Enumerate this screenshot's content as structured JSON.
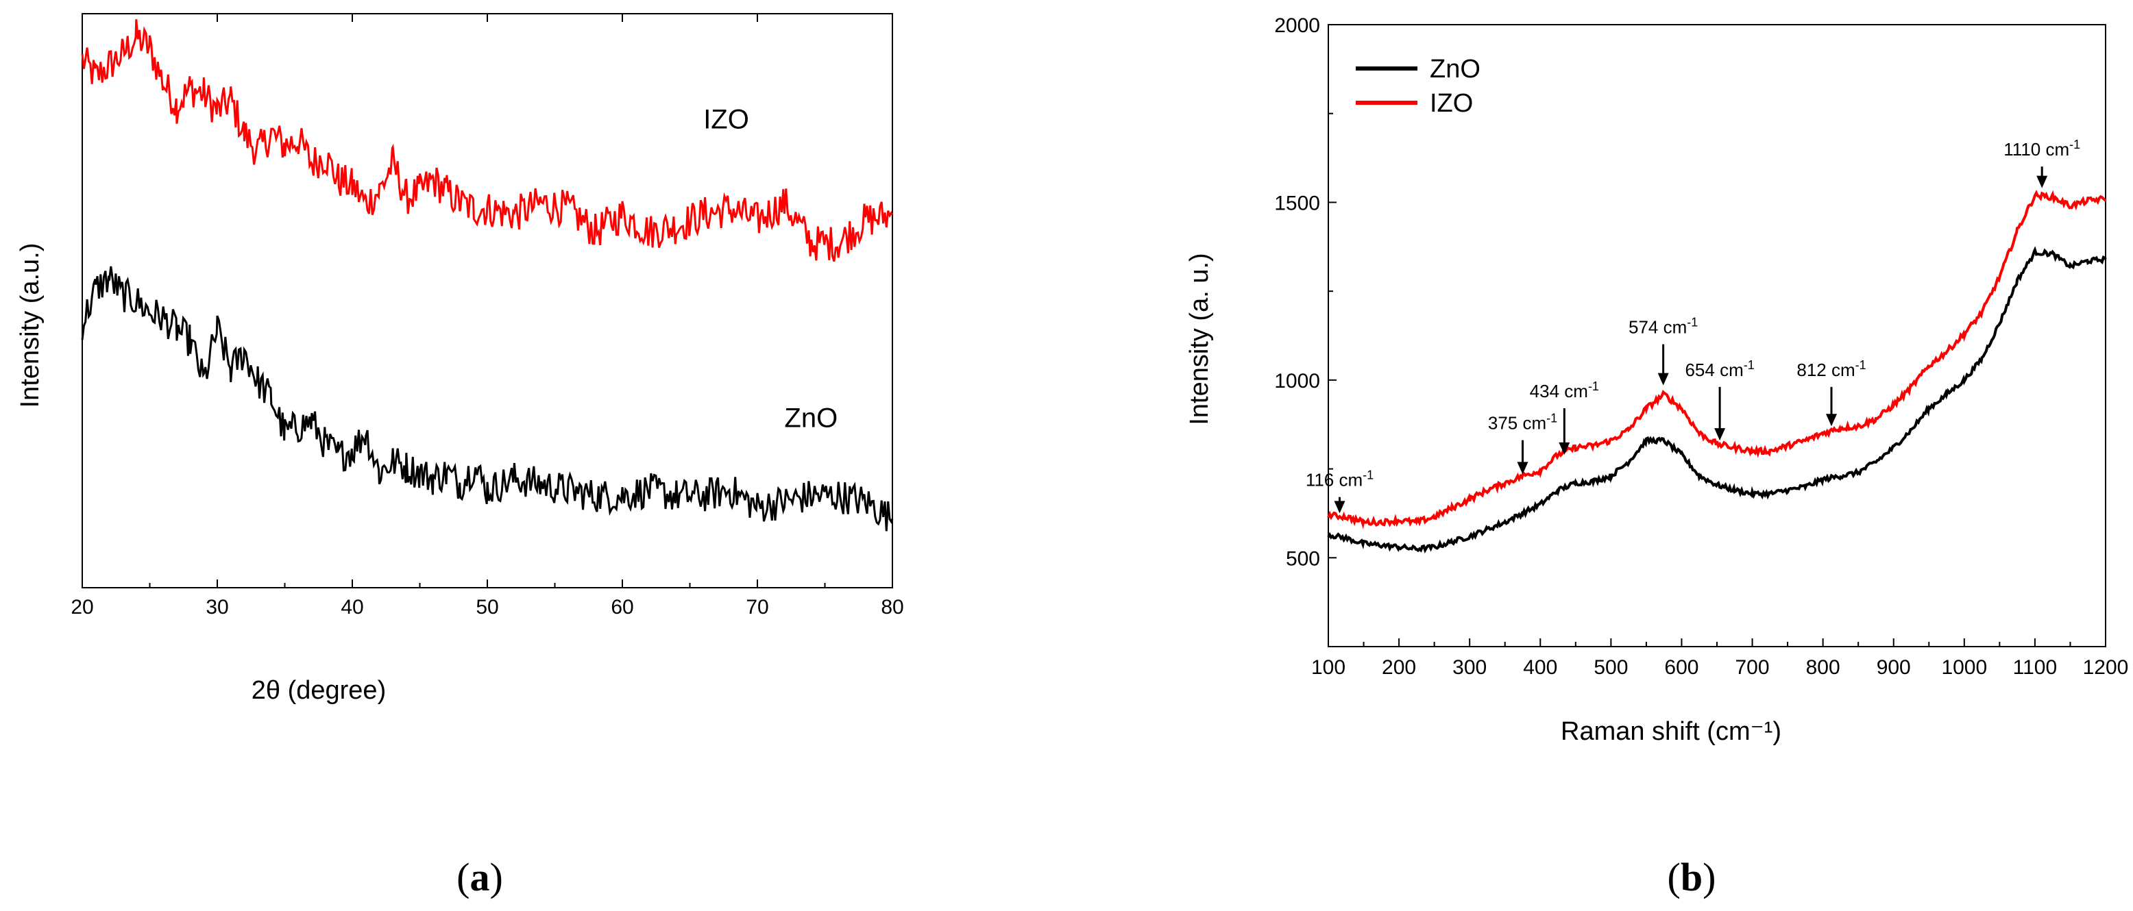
{
  "chart_data": [
    {
      "id": "a",
      "type": "line",
      "panel_label": {
        "open": "(",
        "letter": "a",
        "close": ")"
      },
      "title": "",
      "xlabel": "2θ (degree)",
      "ylabel": "Intensity (a.u.)",
      "xlim": [
        20,
        80
      ],
      "xticks": [
        20,
        30,
        40,
        50,
        60,
        70,
        80
      ],
      "yticks_shown": false,
      "ylim": [
        0,
        100
      ],
      "series": [
        {
          "name": "IZO",
          "color": "#ff0000",
          "label": "IZO",
          "label_at": [
            66,
            80
          ],
          "x": [
            20,
            21,
            22,
            23,
            24,
            25,
            26,
            27,
            28,
            29,
            30,
            31,
            32,
            33,
            34,
            35,
            36,
            37,
            38,
            39,
            40,
            41,
            42,
            43,
            44,
            45,
            46,
            47,
            48,
            49,
            50,
            52,
            54,
            56,
            58,
            60,
            62,
            64,
            66,
            68,
            70,
            72,
            74,
            76,
            78,
            80
          ],
          "y": [
            92,
            89,
            91,
            93,
            96,
            94,
            88,
            84,
            87,
            86,
            83,
            85,
            79,
            76,
            79,
            77,
            78,
            74,
            75,
            71,
            70,
            67,
            69,
            74,
            68,
            69,
            71,
            69,
            67,
            66,
            66,
            65,
            67,
            66,
            62,
            65,
            62,
            63,
            65,
            66,
            64,
            67,
            60,
            60,
            64,
            65
          ],
          "noise": 3.2
        },
        {
          "name": "ZnO",
          "color": "#000000",
          "label": "ZnO",
          "label_at": [
            72,
            28
          ],
          "x": [
            20,
            21,
            22,
            23,
            24,
            25,
            26,
            27,
            28,
            29,
            30,
            31,
            32,
            33,
            34,
            35,
            36,
            37,
            38,
            39,
            40,
            41,
            42,
            43,
            44,
            45,
            46,
            47,
            48,
            49,
            50,
            52,
            54,
            56,
            58,
            60,
            62,
            64,
            66,
            68,
            70,
            72,
            74,
            76,
            78,
            80
          ],
          "y": [
            46,
            52,
            54,
            51,
            50,
            48,
            47,
            45,
            43,
            36,
            45,
            38,
            41,
            36,
            33,
            27,
            28,
            29,
            25,
            23,
            24,
            27,
            20,
            22,
            21,
            20,
            19,
            20,
            18,
            21,
            17,
            19,
            18,
            17,
            16,
            16,
            17,
            16,
            16,
            17,
            14,
            15,
            16,
            16,
            15,
            12
          ],
          "noise": 3.0
        }
      ]
    },
    {
      "id": "b",
      "type": "line",
      "panel_label": {
        "open": "(",
        "letter": "b",
        "close": ")"
      },
      "title": "",
      "xlabel": "Raman shift (cm⁻¹)",
      "ylabel": "Intensity (a. u.)",
      "xlim": [
        100,
        1200
      ],
      "ylim": [
        250,
        2000
      ],
      "xticks": [
        100,
        200,
        300,
        400,
        500,
        600,
        700,
        800,
        900,
        1000,
        1100,
        1200
      ],
      "yticks": [
        500,
        1000,
        1500,
        2000
      ],
      "legend": {
        "position": "top-left",
        "entries": [
          "ZnO",
          "IZO"
        ]
      },
      "series": [
        {
          "name": "ZnO",
          "color": "#000000",
          "x": [
            100,
            125,
            150,
            175,
            200,
            225,
            250,
            275,
            300,
            325,
            350,
            375,
            400,
            425,
            450,
            475,
            500,
            525,
            550,
            575,
            600,
            625,
            650,
            675,
            700,
            725,
            750,
            775,
            800,
            825,
            850,
            875,
            900,
            925,
            950,
            975,
            1000,
            1025,
            1050,
            1075,
            1100,
            1125,
            1150,
            1175,
            1200
          ],
          "y": [
            565,
            555,
            540,
            535,
            530,
            525,
            530,
            545,
            560,
            580,
            600,
            625,
            650,
            690,
            710,
            715,
            730,
            770,
            830,
            830,
            790,
            730,
            705,
            690,
            680,
            680,
            690,
            700,
            720,
            730,
            740,
            770,
            810,
            860,
            920,
            960,
            1000,
            1060,
            1160,
            1280,
            1360,
            1355,
            1320,
            1335,
            1340
          ],
          "noise": 7
        },
        {
          "name": "IZO",
          "color": "#ff0000",
          "x": [
            100,
            125,
            150,
            175,
            200,
            225,
            250,
            275,
            300,
            325,
            350,
            375,
            400,
            425,
            450,
            475,
            500,
            525,
            550,
            575,
            600,
            625,
            650,
            675,
            700,
            725,
            750,
            775,
            800,
            825,
            850,
            875,
            900,
            925,
            950,
            975,
            1000,
            1025,
            1050,
            1075,
            1100,
            1125,
            1150,
            1175,
            1200
          ],
          "y": [
            620,
            615,
            600,
            600,
            605,
            600,
            615,
            640,
            665,
            690,
            710,
            730,
            745,
            790,
            810,
            815,
            830,
            860,
            920,
            960,
            920,
            850,
            820,
            810,
            800,
            800,
            815,
            830,
            850,
            865,
            870,
            890,
            930,
            980,
            1040,
            1080,
            1130,
            1190,
            1290,
            1420,
            1520,
            1515,
            1490,
            1505,
            1510
          ],
          "noise": 8
        }
      ],
      "annotations": [
        {
          "label": "116 cm",
          "sup": "-1",
          "x": 116,
          "arrow_from": 690,
          "arrow_to": 625
        },
        {
          "label": "375 cm",
          "sup": "-1",
          "x": 375,
          "arrow_from": 850,
          "arrow_to": 735
        },
        {
          "label": "434 cm",
          "sup": "-1",
          "x": 434,
          "arrow_from": 940,
          "arrow_to": 790
        },
        {
          "label": "574 cm",
          "sup": "-1",
          "x": 574,
          "arrow_from": 1120,
          "arrow_to": 985
        },
        {
          "label": "654 cm",
          "sup": "-1",
          "x": 654,
          "arrow_from": 1000,
          "arrow_to": 830
        },
        {
          "label": "812 cm",
          "sup": "-1",
          "x": 812,
          "arrow_from": 1000,
          "arrow_to": 870
        },
        {
          "label": "1110 cm",
          "sup": "-1",
          "x": 1110,
          "arrow_from": 1620,
          "arrow_to": 1540
        }
      ]
    }
  ]
}
